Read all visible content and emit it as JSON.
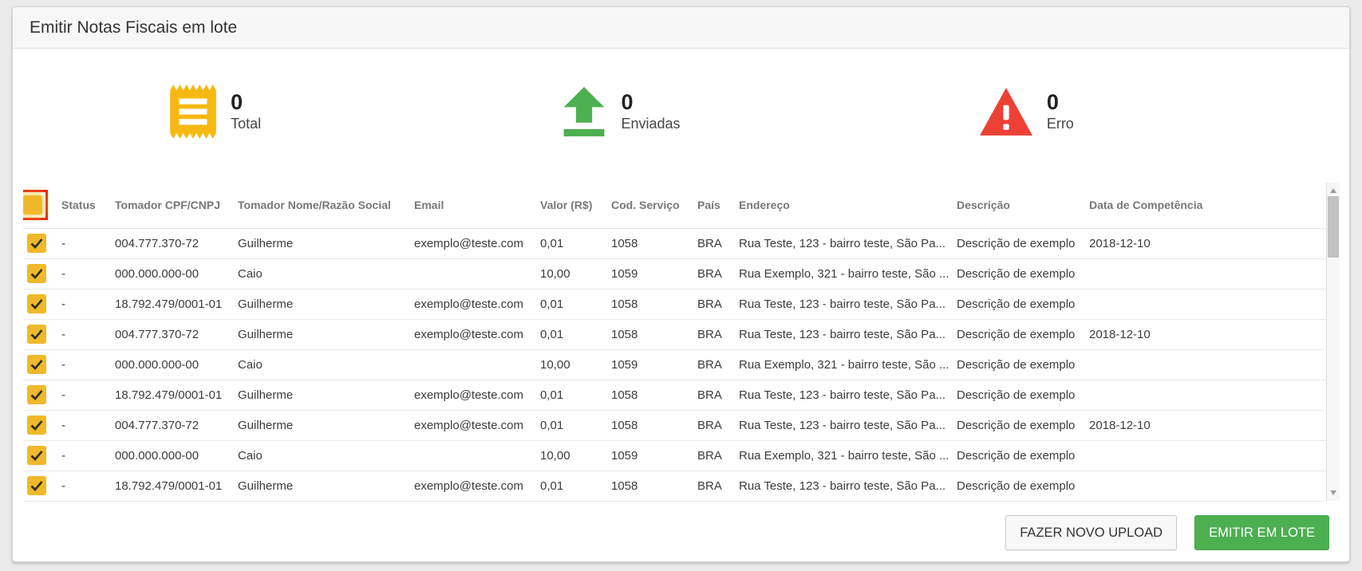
{
  "page": {
    "title": "Emitir Notas Fiscais em lote"
  },
  "stats": [
    {
      "icon": "receipt-icon",
      "value": "0",
      "label": "Total"
    },
    {
      "icon": "upload-icon",
      "value": "0",
      "label": "Enviadas"
    },
    {
      "icon": "warning-icon",
      "value": "0",
      "label": "Erro"
    }
  ],
  "table": {
    "columns": [
      "Status",
      "Tomador CPF/CNPJ",
      "Tomador Nome/Razão Social",
      "Email",
      "Valor (R$)",
      "Cod. Serviço",
      "País",
      "Endereço",
      "Descrição",
      "Data de Competência"
    ],
    "rows": [
      {
        "checked": true,
        "status": "-",
        "cpf": "004.777.370-72",
        "nome": "Guilherme",
        "email": "exemplo@teste.com",
        "valor": "0,01",
        "cod": "1058",
        "pais": "BRA",
        "endereco": "Rua Teste, 123 - bairro teste, São Pa...",
        "desc": "Descrição de exemplo",
        "data": "2018-12-10"
      },
      {
        "checked": true,
        "status": "-",
        "cpf": "000.000.000-00",
        "nome": "Caio",
        "email": "",
        "valor": "10,00",
        "cod": "1059",
        "pais": "BRA",
        "endereco": "Rua Exemplo, 321 - bairro teste, São ...",
        "desc": "Descrição de exemplo",
        "data": ""
      },
      {
        "checked": true,
        "status": "-",
        "cpf": "18.792.479/0001-01",
        "nome": "Guilherme",
        "email": "exemplo@teste.com",
        "valor": "0,01",
        "cod": "1058",
        "pais": "BRA",
        "endereco": "Rua Teste, 123 - bairro teste, São Pa...",
        "desc": "Descrição de exemplo",
        "data": ""
      },
      {
        "checked": true,
        "status": "-",
        "cpf": "004.777.370-72",
        "nome": "Guilherme",
        "email": "exemplo@teste.com",
        "valor": "0,01",
        "cod": "1058",
        "pais": "BRA",
        "endereco": "Rua Teste, 123 - bairro teste, São Pa...",
        "desc": "Descrição de exemplo",
        "data": "2018-12-10"
      },
      {
        "checked": true,
        "status": "-",
        "cpf": "000.000.000-00",
        "nome": "Caio",
        "email": "",
        "valor": "10,00",
        "cod": "1059",
        "pais": "BRA",
        "endereco": "Rua Exemplo, 321 - bairro teste, São ...",
        "desc": "Descrição de exemplo",
        "data": ""
      },
      {
        "checked": true,
        "status": "-",
        "cpf": "18.792.479/0001-01",
        "nome": "Guilherme",
        "email": "exemplo@teste.com",
        "valor": "0,01",
        "cod": "1058",
        "pais": "BRA",
        "endereco": "Rua Teste, 123 - bairro teste, São Pa...",
        "desc": "Descrição de exemplo",
        "data": ""
      },
      {
        "checked": true,
        "status": "-",
        "cpf": "004.777.370-72",
        "nome": "Guilherme",
        "email": "exemplo@teste.com",
        "valor": "0,01",
        "cod": "1058",
        "pais": "BRA",
        "endereco": "Rua Teste, 123 - bairro teste, São Pa...",
        "desc": "Descrição de exemplo",
        "data": "2018-12-10"
      },
      {
        "checked": true,
        "status": "-",
        "cpf": "000.000.000-00",
        "nome": "Caio",
        "email": "",
        "valor": "10,00",
        "cod": "1059",
        "pais": "BRA",
        "endereco": "Rua Exemplo, 321 - bairro teste, São ...",
        "desc": "Descrição de exemplo",
        "data": ""
      },
      {
        "checked": true,
        "status": "-",
        "cpf": "18.792.479/0001-01",
        "nome": "Guilherme",
        "email": "exemplo@teste.com",
        "valor": "0,01",
        "cod": "1058",
        "pais": "BRA",
        "endereco": "Rua Teste, 123 - bairro teste, São Pa...",
        "desc": "Descrição de exemplo",
        "data": ""
      }
    ]
  },
  "buttons": {
    "new_upload": "FAZER NOVO UPLOAD",
    "emit_batch": "EMITIR EM LOTE"
  },
  "colors": {
    "accent_yellow": "#f6b912",
    "accent_green": "#4caf50",
    "accent_red": "#ee4136",
    "checkbox_yellow": "#f0b92b",
    "highlight_red": "#e8170d"
  }
}
